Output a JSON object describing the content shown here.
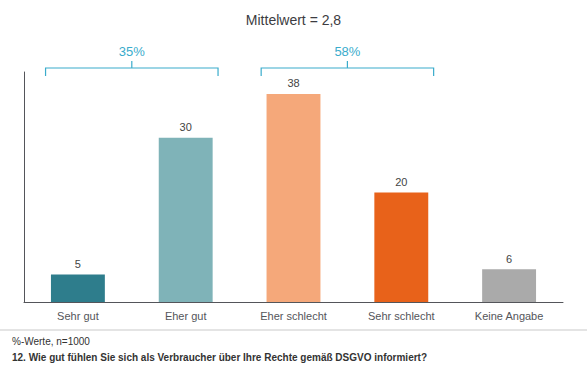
{
  "chart_data": {
    "type": "bar",
    "title": "Mittelwert = 2,8",
    "categories": [
      "Sehr gut",
      "Eher gut",
      "Eher schlecht",
      "Sehr schlecht",
      "Keine Angabe"
    ],
    "values": [
      5,
      30,
      38,
      20,
      6
    ],
    "colors": [
      "#2e7d8c",
      "#7fb3b8",
      "#f5a87a",
      "#e8621a",
      "#aaaaaa"
    ],
    "ylim": [
      0,
      42
    ],
    "grid": false,
    "tick_labels": "x",
    "data_labels": true,
    "annotations": [
      {
        "text": "35%",
        "categories": [
          "Sehr gut",
          "Eher gut"
        ],
        "color": "#3aaccc"
      },
      {
        "text": "58%",
        "categories": [
          "Eher schlecht",
          "Sehr schlecht"
        ],
        "color": "#3aaccc"
      }
    ],
    "footnotes": [
      "%-Werte, n=1000",
      "12. Wie gut fühlen Sie sich als Verbraucher über Ihre Rechte gemäß DSGVO informiert?"
    ]
  }
}
